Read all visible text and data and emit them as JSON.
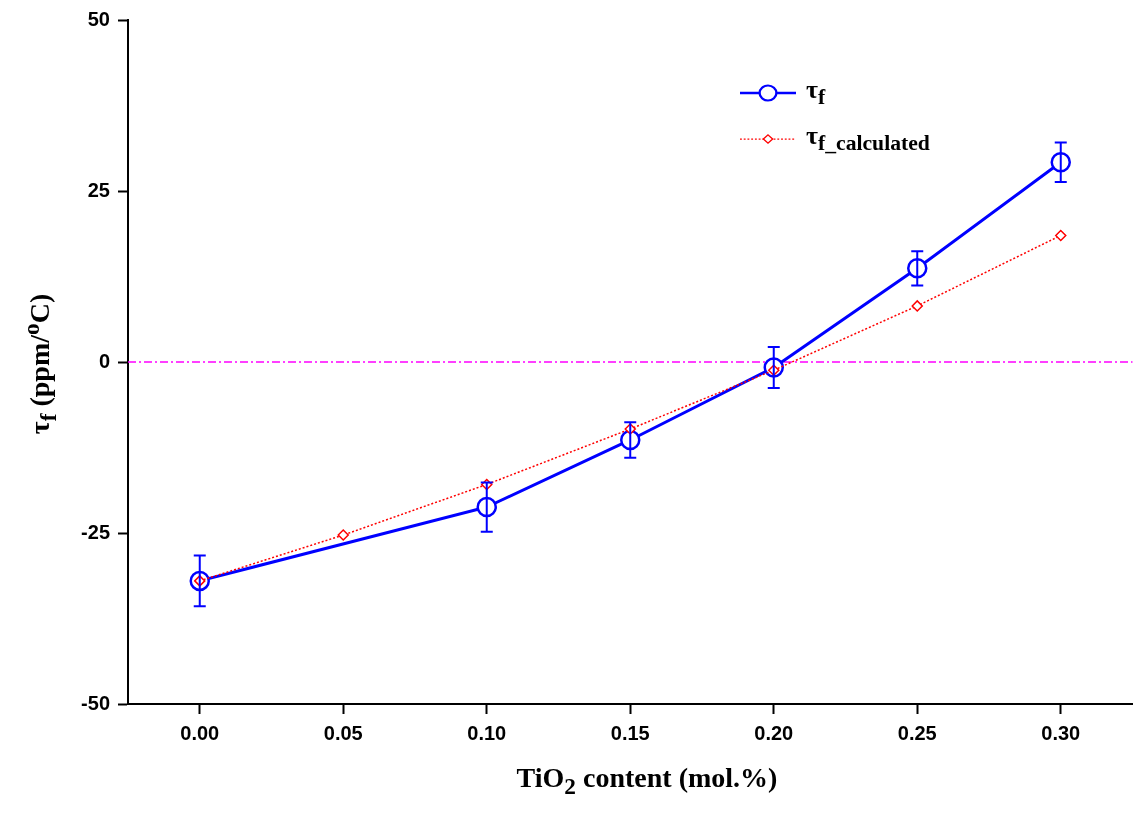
{
  "chart_data": {
    "type": "line",
    "xlabel": "TiO$_{2}$ content (mol.%)",
    "ylabel": "τ$_{f}$ (ppm/$^{o}$C)",
    "xlim": [
      -0.025,
      0.325
    ],
    "xticks": [
      {
        "value": 0,
        "label": "0.00"
      },
      {
        "value": 0.05,
        "label": "0.05"
      },
      {
        "value": 0.1,
        "label": "0.10"
      },
      {
        "value": 0.15,
        "label": "0.15"
      },
      {
        "value": 0.2,
        "label": "0.20"
      },
      {
        "value": 0.25,
        "label": "0.25"
      },
      {
        "value": 0.3,
        "label": "0.30"
      }
    ],
    "ylim": [
      -50,
      50
    ],
    "yticks": [
      -50,
      -25,
      0,
      25,
      50
    ],
    "series": [
      {
        "name": "τ$_{f}$",
        "color": "#0000ff",
        "marker": "circle",
        "line_style": "solid",
        "x": [
          0,
          0.1,
          0.15,
          0.2,
          0.25,
          0.3
        ],
        "values": [
          -32,
          -21.2,
          -11.4,
          -0.8,
          13.7,
          29.2
        ],
        "errors": [
          3.7,
          3.6,
          2.6,
          3,
          2.5,
          2.9
        ]
      },
      {
        "name": "τ$_{f_calculated}$",
        "color": "#ff0000",
        "marker": "diamond",
        "line_style": "dotted",
        "x": [
          0,
          0.05,
          0.1,
          0.15,
          0.2,
          0.25,
          0.3
        ],
        "values": [
          -32,
          -25.3,
          -17.9,
          -9.8,
          -1.2,
          8.2,
          18.5
        ]
      }
    ],
    "ref_lines": [
      {
        "axis": "y",
        "value": 0,
        "color": "#ff00ff",
        "line_style": "dashed"
      }
    ],
    "legend": "top right",
    "grid": false
  }
}
